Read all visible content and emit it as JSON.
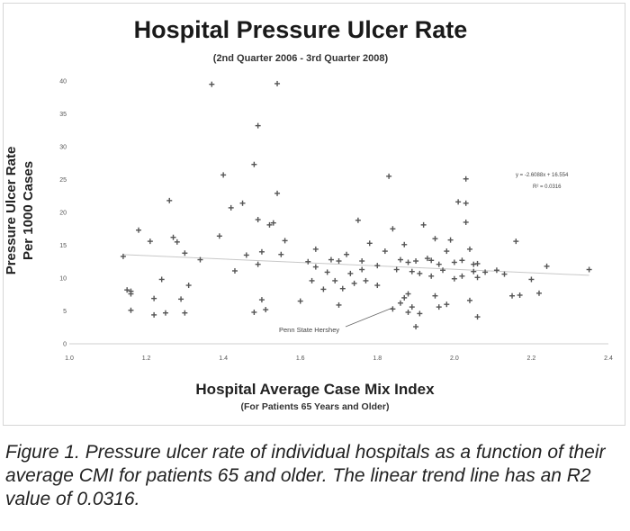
{
  "chart_data": {
    "type": "scatter",
    "title": "Hospital Pressure Ulcer Rate",
    "subtitle": "(2nd Quarter 2006 - 3rd Quarter 2008)",
    "xlabel": "Hospital Average Case Mix Index",
    "xlabel_sub": "(For Patients 65 Years and Older)",
    "ylabel_line1": "Pressure Ulcer Rate",
    "ylabel_line2": "Per 1000 Cases",
    "xlim": [
      1.0,
      2.4
    ],
    "ylim": [
      0,
      40
    ],
    "xticks": [
      "1.0",
      "1.2",
      "1.4",
      "1.6",
      "1.8",
      "2.0",
      "2.2",
      "2.4"
    ],
    "yticks": [
      "0",
      "5",
      "10",
      "15",
      "20",
      "25",
      "30",
      "35",
      "40"
    ],
    "grid": false,
    "marker": "+",
    "point_color": "#555555",
    "trendline": {
      "type": "linear",
      "slope": -2.6088,
      "intercept": 16.554,
      "r_squared": 0.0316
    },
    "trend_equation": "y = -2.6088x + 16.554",
    "r_squared_label": "R² = 0.0316",
    "callout": {
      "label": "Penn State Hershey",
      "x": 1.84,
      "y": 5.5
    },
    "points": [
      [
        1.14,
        13.3
      ],
      [
        1.15,
        8.2
      ],
      [
        1.16,
        7.6
      ],
      [
        1.16,
        5.1
      ],
      [
        1.16,
        8.0
      ],
      [
        1.18,
        17.3
      ],
      [
        1.21,
        15.6
      ],
      [
        1.22,
        6.9
      ],
      [
        1.22,
        4.4
      ],
      [
        1.24,
        9.8
      ],
      [
        1.25,
        4.7
      ],
      [
        1.26,
        21.8
      ],
      [
        1.27,
        16.2
      ],
      [
        1.28,
        15.5
      ],
      [
        1.29,
        6.8
      ],
      [
        1.3,
        13.8
      ],
      [
        1.3,
        4.7
      ],
      [
        1.31,
        8.9
      ],
      [
        1.34,
        12.8
      ],
      [
        1.37,
        39.5
      ],
      [
        1.39,
        16.4
      ],
      [
        1.4,
        25.7
      ],
      [
        1.42,
        20.7
      ],
      [
        1.43,
        11.1
      ],
      [
        1.45,
        21.4
      ],
      [
        1.46,
        13.5
      ],
      [
        1.48,
        27.3
      ],
      [
        1.48,
        4.8
      ],
      [
        1.49,
        33.2
      ],
      [
        1.49,
        18.9
      ],
      [
        1.49,
        12.1
      ],
      [
        1.5,
        14.0
      ],
      [
        1.5,
        6.7
      ],
      [
        1.51,
        5.2
      ],
      [
        1.52,
        18.1
      ],
      [
        1.53,
        18.4
      ],
      [
        1.54,
        39.6
      ],
      [
        1.54,
        22.9
      ],
      [
        1.55,
        13.6
      ],
      [
        1.56,
        15.7
      ],
      [
        1.6,
        6.5
      ],
      [
        1.62,
        12.5
      ],
      [
        1.63,
        9.6
      ],
      [
        1.64,
        14.4
      ],
      [
        1.64,
        11.7
      ],
      [
        1.66,
        8.3
      ],
      [
        1.67,
        10.9
      ],
      [
        1.68,
        12.8
      ],
      [
        1.69,
        9.6
      ],
      [
        1.7,
        5.9
      ],
      [
        1.7,
        12.6
      ],
      [
        1.71,
        8.4
      ],
      [
        1.72,
        13.6
      ],
      [
        1.73,
        10.7
      ],
      [
        1.74,
        9.2
      ],
      [
        1.75,
        18.8
      ],
      [
        1.76,
        12.6
      ],
      [
        1.76,
        11.3
      ],
      [
        1.77,
        9.6
      ],
      [
        1.78,
        15.3
      ],
      [
        1.8,
        11.9
      ],
      [
        1.8,
        8.9
      ],
      [
        1.82,
        14.1
      ],
      [
        1.83,
        25.5
      ],
      [
        1.84,
        17.5
      ],
      [
        1.84,
        5.3
      ],
      [
        1.85,
        11.3
      ],
      [
        1.86,
        12.8
      ],
      [
        1.86,
        6.2
      ],
      [
        1.87,
        15.1
      ],
      [
        1.87,
        7.0
      ],
      [
        1.88,
        12.4
      ],
      [
        1.88,
        7.6
      ],
      [
        1.88,
        4.8
      ],
      [
        1.89,
        11.0
      ],
      [
        1.89,
        5.6
      ],
      [
        1.9,
        12.6
      ],
      [
        1.9,
        2.6
      ],
      [
        1.91,
        10.7
      ],
      [
        1.91,
        4.6
      ],
      [
        1.92,
        18.1
      ],
      [
        1.93,
        13.0
      ],
      [
        1.94,
        12.7
      ],
      [
        1.94,
        10.3
      ],
      [
        1.95,
        16.0
      ],
      [
        1.95,
        7.3
      ],
      [
        1.96,
        12.1
      ],
      [
        1.96,
        5.6
      ],
      [
        1.97,
        11.2
      ],
      [
        1.98,
        14.1
      ],
      [
        1.98,
        6.0
      ],
      [
        1.99,
        15.8
      ],
      [
        2.0,
        12.4
      ],
      [
        2.0,
        9.9
      ],
      [
        2.01,
        21.6
      ],
      [
        2.02,
        12.7
      ],
      [
        2.02,
        10.3
      ],
      [
        2.03,
        18.5
      ],
      [
        2.03,
        21.4
      ],
      [
        2.03,
        25.1
      ],
      [
        2.04,
        14.4
      ],
      [
        2.04,
        6.6
      ],
      [
        2.05,
        12.1
      ],
      [
        2.05,
        11.0
      ],
      [
        2.06,
        12.2
      ],
      [
        2.06,
        10.1
      ],
      [
        2.06,
        4.1
      ],
      [
        2.08,
        10.9
      ],
      [
        2.11,
        11.2
      ],
      [
        2.13,
        10.6
      ],
      [
        2.15,
        7.3
      ],
      [
        2.16,
        15.6
      ],
      [
        2.17,
        7.4
      ],
      [
        2.2,
        9.8
      ],
      [
        2.22,
        7.7
      ],
      [
        2.24,
        11.8
      ],
      [
        2.35,
        11.3
      ]
    ]
  },
  "caption": "Figure 1. Pressure ulcer rate of individual hospitals as a function of their average CMI for patients 65 and older. The linear trend line has an R2 value of 0.0316."
}
